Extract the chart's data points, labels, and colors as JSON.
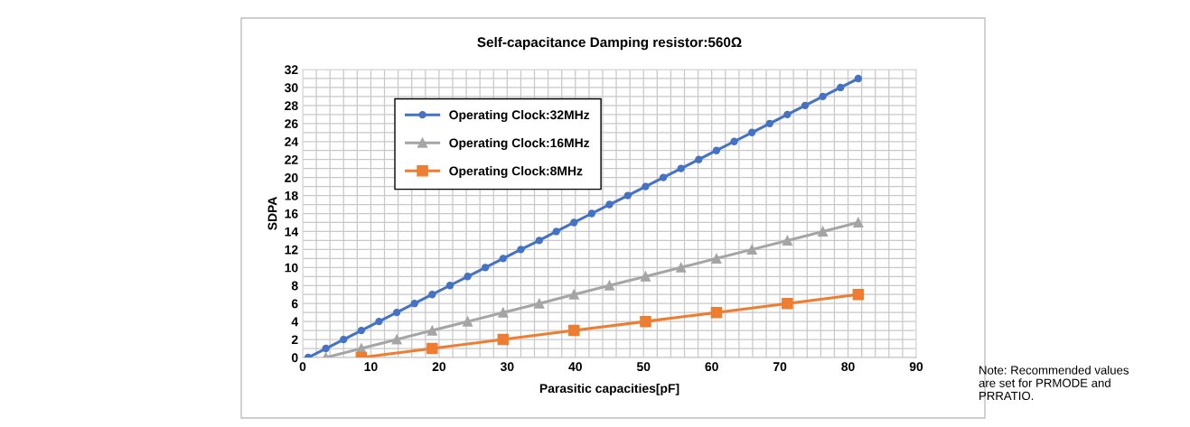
{
  "chart_data": {
    "type": "line",
    "title": "Self-capacitance Damping resistor:560Ω",
    "xlabel": "Parasitic capacities[pF]",
    "ylabel": "SDPA",
    "series": [
      {
        "name": "Operating Clock:32MHz",
        "color": "#4472c4",
        "marker": "circle",
        "x": [
          0.8,
          3.4,
          6.0,
          8.6,
          11.2,
          13.8,
          16.4,
          19.0,
          21.6,
          24.2,
          26.8,
          29.4,
          32.0,
          34.7,
          37.2,
          39.8,
          42.4,
          45.0,
          47.7,
          50.3,
          52.9,
          55.5,
          58.1,
          60.7,
          63.3,
          65.9,
          68.5,
          71.1,
          73.7,
          76.3,
          78.9,
          81.5
        ],
        "values": [
          0,
          1,
          2,
          3,
          4,
          5,
          6,
          7,
          8,
          9,
          10,
          11,
          12,
          13,
          14,
          15,
          16,
          17,
          18,
          19,
          20,
          21,
          22,
          23,
          24,
          25,
          26,
          27,
          28,
          29,
          30,
          31
        ]
      },
      {
        "name": "Operating Clock:16MHz",
        "color": "#a5a5a5",
        "marker": "triangle",
        "x": [
          3.4,
          8.6,
          13.8,
          19.0,
          24.2,
          29.4,
          34.7,
          39.8,
          45.0,
          50.3,
          55.5,
          60.7,
          65.9,
          71.1,
          76.3,
          81.5
        ],
        "values": [
          0,
          1,
          2,
          3,
          4,
          5,
          6,
          7,
          8,
          9,
          10,
          11,
          12,
          13,
          14,
          15
        ]
      },
      {
        "name": "Operating Clock:8MHz",
        "color": "#ed7d31",
        "marker": "square",
        "x": [
          8.6,
          19.0,
          29.4,
          39.8,
          50.3,
          60.7,
          71.1,
          81.5
        ],
        "values": [
          0,
          1,
          2,
          3,
          4,
          5,
          6,
          7
        ]
      }
    ],
    "xlim": [
      0,
      90
    ],
    "xticks": [
      0,
      10,
      20,
      30,
      40,
      50,
      60,
      70,
      80,
      90
    ],
    "ylim": [
      0,
      32
    ],
    "yticks": [
      0,
      2,
      4,
      6,
      8,
      10,
      12,
      14,
      16,
      18,
      20,
      22,
      24,
      26,
      28,
      30,
      32
    ],
    "grid": true,
    "legend": "top left",
    "line_style": "solid",
    "annotations": [
      "Note: Recommended values\nare set for PRMODE and\nPRRATIO."
    ]
  }
}
